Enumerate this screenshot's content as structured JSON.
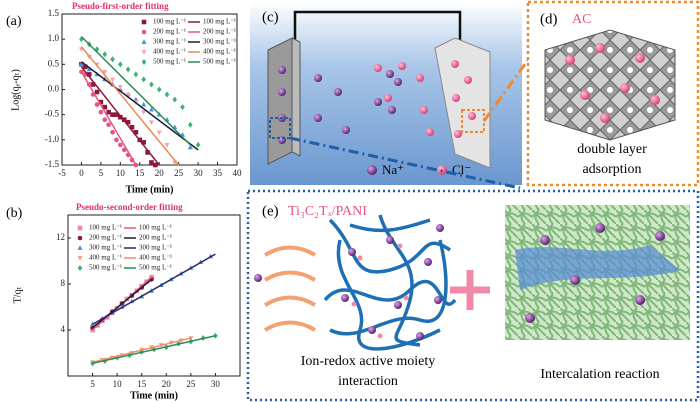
{
  "chart_data": [
    {
      "type": "scatter",
      "panel_label": "(a)",
      "title": "Pseudo-first-order fitting",
      "x_label": "Time (min)",
      "y_label": "Log(qₑ-qₜ)",
      "xlim": [
        -5,
        40
      ],
      "ylim": [
        -1.5,
        1.5
      ],
      "xticks": [
        -5,
        0,
        5,
        10,
        15,
        20,
        25,
        30,
        35,
        40
      ],
      "yticks": [
        -1.5,
        {
          "value": -1,
          "label": "-1.0"
        },
        -0.5,
        {
          "value": 0,
          "label": "0.0"
        },
        0.5,
        {
          "value": 1,
          "label": "1.0"
        },
        1.5
      ],
      "legend": "upper right",
      "grid": false,
      "series": [
        {
          "name": "100 mg L⁻¹",
          "mode": "markers",
          "marker": "square",
          "color": "#8b1a3a",
          "x": [
            0,
            1,
            2,
            3,
            4,
            5,
            6,
            7,
            8,
            9,
            10,
            11,
            12,
            13,
            14,
            15,
            16,
            17,
            18,
            19
          ],
          "values": [
            0.5,
            0.45,
            0.3,
            0.1,
            -0.05,
            -0.25,
            -0.35,
            -0.45,
            -0.5,
            -0.5,
            -0.55,
            -0.6,
            -0.65,
            -0.75,
            -0.85,
            -1.0,
            -1.05,
            -1.25,
            -1.45,
            -1.5
          ]
        },
        {
          "name": "200 mg L⁻¹",
          "mode": "markers",
          "marker": "circle",
          "color": "#e75480",
          "x": [
            0,
            1,
            2,
            3,
            4,
            5,
            6,
            7,
            8,
            9,
            10,
            11,
            12,
            13,
            14
          ],
          "values": [
            0.35,
            0.3,
            0.1,
            -0.1,
            -0.3,
            -0.45,
            -0.6,
            -0.7,
            -0.85,
            -1.0,
            -1.1,
            -1.2,
            -1.3,
            -1.4,
            -1.5
          ]
        },
        {
          "name": "300 mg L⁻¹",
          "mode": "markers",
          "marker": "triangle-up",
          "color": "#4a90d9",
          "x": [
            0,
            2,
            4,
            6,
            8,
            10,
            12,
            14,
            16,
            18,
            20,
            22,
            24,
            26,
            28
          ],
          "values": [
            0.5,
            0.4,
            0.3,
            0.2,
            0.1,
            0.0,
            -0.1,
            -0.2,
            -0.3,
            -0.4,
            -0.5,
            -0.6,
            -0.75,
            -0.9,
            -1.15
          ]
        },
        {
          "name": "400 mg L⁻¹",
          "mode": "markers",
          "marker": "triangle-down",
          "color": "#f4a0b0",
          "x": [
            0,
            2,
            4,
            6,
            8,
            10,
            12,
            14,
            16,
            18,
            20,
            22,
            24
          ],
          "values": [
            0.8,
            0.65,
            0.5,
            0.35,
            0.2,
            0.05,
            -0.1,
            -0.25,
            -0.45,
            -0.65,
            -0.85,
            -1.1,
            -1.45
          ]
        },
        {
          "name": "500 mg L⁻¹",
          "mode": "markers",
          "marker": "diamond",
          "color": "#3cb371",
          "x": [
            0,
            2,
            4,
            6,
            8,
            10,
            12,
            14,
            16,
            18,
            20,
            22,
            24,
            26,
            28,
            30
          ],
          "values": [
            1.0,
            0.9,
            0.8,
            0.7,
            0.6,
            0.5,
            0.4,
            0.3,
            0.2,
            0.1,
            0.0,
            -0.1,
            -0.2,
            -0.35,
            -0.7,
            -1.1
          ]
        },
        {
          "name": "100 mg L⁻¹",
          "mode": "line",
          "color": "#8b1a3a",
          "x": [
            0,
            20
          ],
          "values": [
            0.45,
            -1.5
          ]
        },
        {
          "name": "200 mg L⁻¹",
          "mode": "line",
          "color": "#e75480",
          "x": [
            0,
            14
          ],
          "values": [
            0.35,
            -1.5
          ]
        },
        {
          "name": "300 mg L⁻¹",
          "mode": "line",
          "color": "#1a1a3a",
          "x": [
            0,
            30
          ],
          "values": [
            0.55,
            -1.2
          ]
        },
        {
          "name": "400 mg L⁻¹",
          "mode": "line",
          "color": "#f08a50",
          "x": [
            0,
            25
          ],
          "values": [
            0.85,
            -1.5
          ]
        },
        {
          "name": "500 mg L⁻¹",
          "mode": "line",
          "color": "#2e8b57",
          "x": [
            0,
            28
          ],
          "values": [
            1.05,
            -1.1
          ]
        }
      ]
    },
    {
      "type": "scatter",
      "panel_label": "(b)",
      "title": "Pseudo-second-order fitting",
      "x_label": "Time (min)",
      "y_label": "T/qₜ",
      "xlim": [
        0,
        35
      ],
      "ylim": [
        0,
        14
      ],
      "xticks": [
        5,
        10,
        15,
        20,
        25,
        30
      ],
      "yticks": [
        4,
        8,
        12
      ],
      "legend": "upper left",
      "grid": false,
      "series": [
        {
          "name": "100 mg L⁻¹",
          "mode": "markers",
          "marker": "square",
          "color": "#f08aa0",
          "x": [
            5,
            6,
            7,
            8,
            9,
            10,
            11,
            12,
            13,
            14,
            15,
            16,
            17
          ],
          "values": [
            4.0,
            4.4,
            4.8,
            5.1,
            5.5,
            5.9,
            6.3,
            6.7,
            7.0,
            7.4,
            7.8,
            8.2,
            8.6
          ]
        },
        {
          "name": "200 mg L⁻¹",
          "mode": "markers",
          "marker": "circle",
          "color": "#8b1a3a",
          "x": [
            5,
            7,
            9,
            11,
            13,
            15,
            17
          ],
          "values": [
            4.2,
            4.9,
            5.6,
            6.3,
            7.0,
            7.7,
            8.4
          ]
        },
        {
          "name": "300 mg L⁻¹",
          "mode": "markers",
          "marker": "triangle-up",
          "color": "#4a90d9",
          "x": [
            5,
            7,
            9,
            11,
            13,
            15,
            17,
            19,
            21,
            23,
            25,
            27,
            29
          ],
          "values": [
            4.5,
            5.0,
            5.5,
            6.0,
            6.5,
            6.9,
            7.4,
            7.9,
            8.4,
            8.9,
            9.4,
            9.9,
            10.4
          ]
        },
        {
          "name": "400 mg L⁻¹",
          "mode": "markers",
          "marker": "triangle-down",
          "color": "#f4a070",
          "x": [
            5,
            7,
            9,
            11,
            13,
            15,
            17,
            19,
            21,
            23,
            25
          ],
          "values": [
            1.2,
            1.4,
            1.6,
            1.8,
            2.0,
            2.3,
            2.5,
            2.7,
            2.9,
            3.1,
            3.3
          ]
        },
        {
          "name": "500 mg L⁻¹",
          "mode": "markers",
          "marker": "diamond",
          "color": "#3cb371",
          "x": [
            5,
            7.5,
            10,
            12.5,
            15,
            17.5,
            20,
            22.5,
            25,
            27.5,
            30
          ],
          "values": [
            1.1,
            1.3,
            1.6,
            1.8,
            2.1,
            2.3,
            2.5,
            2.8,
            3.0,
            3.3,
            3.5
          ]
        },
        {
          "name": "100 mg L⁻¹",
          "mode": "line",
          "color": "#e75480",
          "x": [
            5,
            17
          ],
          "values": [
            4.0,
            8.6
          ]
        },
        {
          "name": "200 mg L⁻¹",
          "mode": "line",
          "color": "#1a1a3a",
          "x": [
            5,
            17
          ],
          "values": [
            4.2,
            8.4
          ]
        },
        {
          "name": "300 mg L⁻¹",
          "mode": "line",
          "color": "#2a2a6a",
          "x": [
            5,
            30
          ],
          "values": [
            4.5,
            10.6
          ]
        },
        {
          "name": "400 mg L⁻¹",
          "mode": "line",
          "color": "#f08a70",
          "x": [
            5,
            25
          ],
          "values": [
            1.2,
            3.3
          ]
        },
        {
          "name": "500 mg L⁻¹",
          "mode": "line",
          "color": "#2e8b57",
          "x": [
            5,
            30
          ],
          "values": [
            1.1,
            3.5
          ]
        }
      ]
    }
  ],
  "diagram": {
    "panel_c": {
      "label": "(c)",
      "cation": "Na⁺",
      "anion": "Cl⁻"
    },
    "panel_d": {
      "label": "(d)",
      "material": "AC",
      "caption": [
        "double layer",
        "adsorption"
      ]
    },
    "panel_e": {
      "label": "(e)",
      "material": "Ti₃C₂Tₓ/PANI",
      "left_caption": [
        "Ion-redox active moiety",
        "interaction"
      ],
      "right_caption": "Intercalation reaction"
    }
  }
}
